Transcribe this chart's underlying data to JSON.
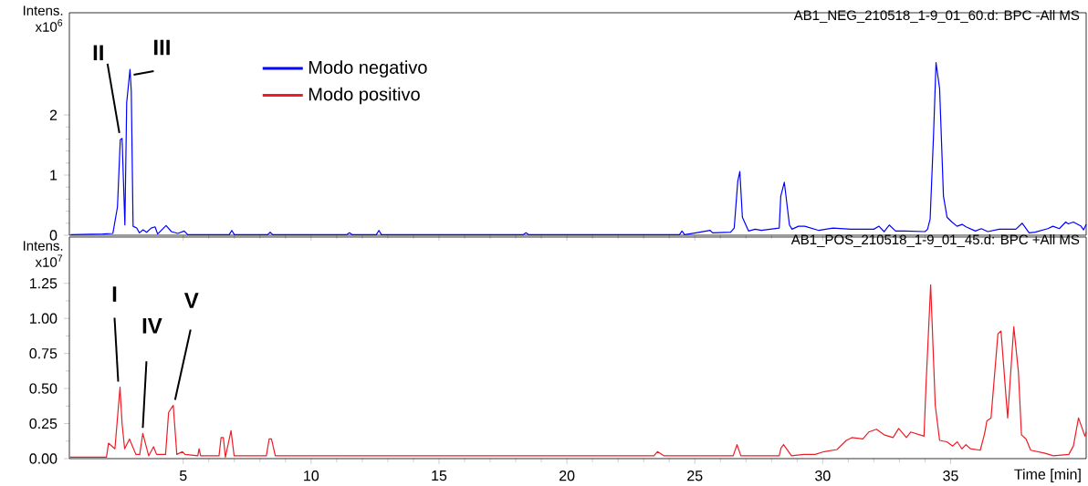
{
  "chart_data": [
    {
      "type": "line",
      "title": "AB1_NEG_210518_1-9_01_60.d: BPC -All MS",
      "ylabel": "Intens. x10$^{6}$",
      "xlim": [
        0.55,
        40.3
      ],
      "xticks": [
        5,
        10,
        15,
        20,
        25,
        30,
        35
      ],
      "ylim": [
        0,
        3.7
      ],
      "yticks": [
        0,
        1,
        2
      ],
      "tick_labels": "y",
      "legend": "top left",
      "annotations": [
        {
          "text": "II",
          "x": 2.54,
          "y": 1.61
        },
        {
          "text": "III",
          "x": 2.92,
          "y": 2.76
        }
      ],
      "series": [
        {
          "name": "Modo negativo",
          "color": "#0000ff",
          "x": [
            0.6,
            1.86,
            2.25,
            2.43,
            2.54,
            2.61,
            2.72,
            2.79,
            2.92,
            2.97,
            3.04,
            3.18,
            3.29,
            3.43,
            3.57,
            3.75,
            3.9,
            4.0,
            4.33,
            4.54,
            4.79,
            5.04,
            5.18,
            6.8,
            6.9,
            7.0,
            8.3,
            8.4,
            8.5,
            11.4,
            11.5,
            11.6,
            12.55,
            12.65,
            12.75,
            18.3,
            18.4,
            18.5,
            24.4,
            24.5,
            24.6,
            25.04,
            25.6,
            25.7,
            26.4,
            26.54,
            26.68,
            26.76,
            26.86,
            27.1,
            27.36,
            27.6,
            28.3,
            28.36,
            28.5,
            28.7,
            28.8,
            29.05,
            29.3,
            29.85,
            30.4,
            31.1,
            32.0,
            32.2,
            32.4,
            32.6,
            32.85,
            33.2,
            34.0,
            34.1,
            34.2,
            34.33,
            34.43,
            34.57,
            34.72,
            34.86,
            35.05,
            35.25,
            35.45,
            35.6,
            35.97,
            36.2,
            36.45,
            36.9,
            37.55,
            37.8,
            38.07,
            38.3,
            38.8,
            39.0,
            39.25,
            39.5,
            39.6,
            39.8,
            40.1,
            40.2,
            40.3
          ],
          "values": [
            0.01,
            0.02,
            0.03,
            0.47,
            1.59,
            1.61,
            0.17,
            2.2,
            2.76,
            2.4,
            0.15,
            0.12,
            0.04,
            0.09,
            0.05,
            0.12,
            0.14,
            0.02,
            0.16,
            0.06,
            0.03,
            0.07,
            0.01,
            0.01,
            0.08,
            0.01,
            0.01,
            0.05,
            0.01,
            0.01,
            0.04,
            0.01,
            0.01,
            0.08,
            0.01,
            0.01,
            0.04,
            0.01,
            0.01,
            0.07,
            0.01,
            0.04,
            0.08,
            0.04,
            0.05,
            0.12,
            0.9,
            1.06,
            0.3,
            0.07,
            0.1,
            0.08,
            0.12,
            0.65,
            0.88,
            0.17,
            0.1,
            0.15,
            0.15,
            0.08,
            0.12,
            0.1,
            0.1,
            0.15,
            0.06,
            0.17,
            0.07,
            0.07,
            0.06,
            0.1,
            0.27,
            1.64,
            2.87,
            2.44,
            0.65,
            0.3,
            0.22,
            0.15,
            0.18,
            0.14,
            0.07,
            0.11,
            0.06,
            0.1,
            0.1,
            0.2,
            0.04,
            0.05,
            0.11,
            0.15,
            0.11,
            0.22,
            0.19,
            0.22,
            0.15,
            0.09,
            0.18
          ]
        }
      ]
    },
    {
      "type": "line",
      "title": "AB1_POS_210518_1-9_01_45.d: BPC +All MS",
      "ylabel": "Intens. x10$^{7}$",
      "xlabel": "Time [min]",
      "xlim": [
        0.55,
        40.3
      ],
      "xticks": [
        5,
        10,
        15,
        20,
        25,
        30,
        35
      ],
      "ylim": [
        0,
        1.58
      ],
      "yticks": [
        {
          "value": 0,
          "label": "0.00"
        },
        {
          "value": 0.25,
          "label": "0.25"
        },
        {
          "value": 0.5,
          "label": "0.50"
        },
        {
          "value": 0.75,
          "label": "0.75"
        },
        {
          "value": 1,
          "label": "1.00"
        },
        {
          "value": 1.25,
          "label": "1.25"
        }
      ],
      "legend": "top",
      "annotations": [
        {
          "text": "I",
          "x": 2.53,
          "y": 0.51
        },
        {
          "text": "IV",
          "x": 3.42,
          "y": 0.18
        },
        {
          "text": "V",
          "x": 4.61,
          "y": 0.38
        }
      ],
      "series": [
        {
          "name": "Modo positivo",
          "color": "#ee1c25",
          "x": [
            0.58,
            2.0,
            2.08,
            2.33,
            2.53,
            2.61,
            2.71,
            2.9,
            3.15,
            3.3,
            3.42,
            3.65,
            3.84,
            3.96,
            4.31,
            4.43,
            4.61,
            4.75,
            4.97,
            5.07,
            5.57,
            5.62,
            5.68,
            6.4,
            6.48,
            6.57,
            6.65,
            6.87,
            6.99,
            8.25,
            8.36,
            8.45,
            8.6,
            15,
            20,
            23.4,
            23.54,
            23.8,
            26.5,
            26.65,
            26.8,
            28.3,
            28.37,
            28.47,
            28.78,
            29.25,
            29.7,
            30.06,
            30.56,
            30.92,
            31.14,
            31.57,
            31.8,
            32.1,
            32.4,
            32.75,
            32.97,
            33.27,
            33.44,
            33.96,
            34.04,
            34.22,
            34.4,
            34.57,
            34.85,
            35.08,
            35.26,
            35.44,
            35.6,
            35.78,
            36.16,
            36.33,
            36.42,
            36.58,
            36.85,
            36.97,
            37.23,
            37.47,
            37.65,
            37.77,
            37.95,
            38.13,
            38.66,
            39.02,
            39.62,
            39.8,
            40.0,
            40.25,
            40.3
          ],
          "values": [
            0.01,
            0.01,
            0.11,
            0.07,
            0.51,
            0.25,
            0.07,
            0.14,
            0.03,
            0.03,
            0.18,
            0.02,
            0.085,
            0.03,
            0.03,
            0.33,
            0.38,
            0.03,
            0.05,
            0.03,
            0.02,
            0.07,
            0.02,
            0.02,
            0.15,
            0.15,
            0.01,
            0.2,
            0.02,
            0.02,
            0.14,
            0.14,
            0.02,
            0.02,
            0.02,
            0.02,
            0.05,
            0.02,
            0.02,
            0.1,
            0.02,
            0.02,
            0.075,
            0.1,
            0.02,
            0.03,
            0.03,
            0.05,
            0.065,
            0.13,
            0.15,
            0.14,
            0.19,
            0.21,
            0.17,
            0.15,
            0.215,
            0.15,
            0.19,
            0.16,
            0.53,
            1.24,
            0.38,
            0.13,
            0.12,
            0.09,
            0.12,
            0.07,
            0.1,
            0.07,
            0.06,
            0.18,
            0.27,
            0.29,
            0.89,
            0.91,
            0.29,
            0.94,
            0.62,
            0.17,
            0.14,
            0.06,
            0.04,
            0.02,
            0.03,
            0.09,
            0.29,
            0.16,
            0.19
          ]
        }
      ]
    }
  ]
}
